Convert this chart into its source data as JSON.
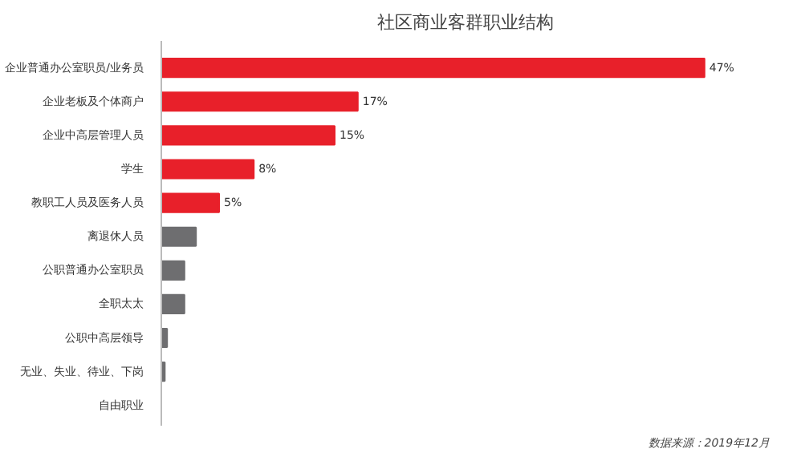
{
  "chart_data": {
    "type": "bar",
    "orientation": "horizontal",
    "title": "社区商业客群职业结构",
    "categories": [
      "企业普通办公室职员/业务员",
      "企业老板及个体商户",
      "企业中高层管理人员",
      "学生",
      "教职工人员及医务人员",
      "离退休人员",
      "公职普通办公室职员",
      "全职太太",
      "公职中高层领导",
      "无业、失业、待业、下岗",
      "自由职业"
    ],
    "values": [
      47,
      17,
      15,
      8,
      5,
      3,
      2,
      2,
      0.5,
      0.3,
      0
    ],
    "colors": [
      "#e8202a",
      "#e8202a",
      "#e8202a",
      "#e8202a",
      "#e8202a",
      "#6e6e70",
      "#6e6e70",
      "#6e6e70",
      "#6e6e70",
      "#6e6e70",
      "#6e6e70"
    ],
    "value_labels": [
      "47%",
      "17%",
      "15%",
      "8%",
      "5%",
      null,
      null,
      null,
      null,
      null,
      null
    ],
    "annotations": [
      "数据来源：2019年12月"
    ]
  }
}
